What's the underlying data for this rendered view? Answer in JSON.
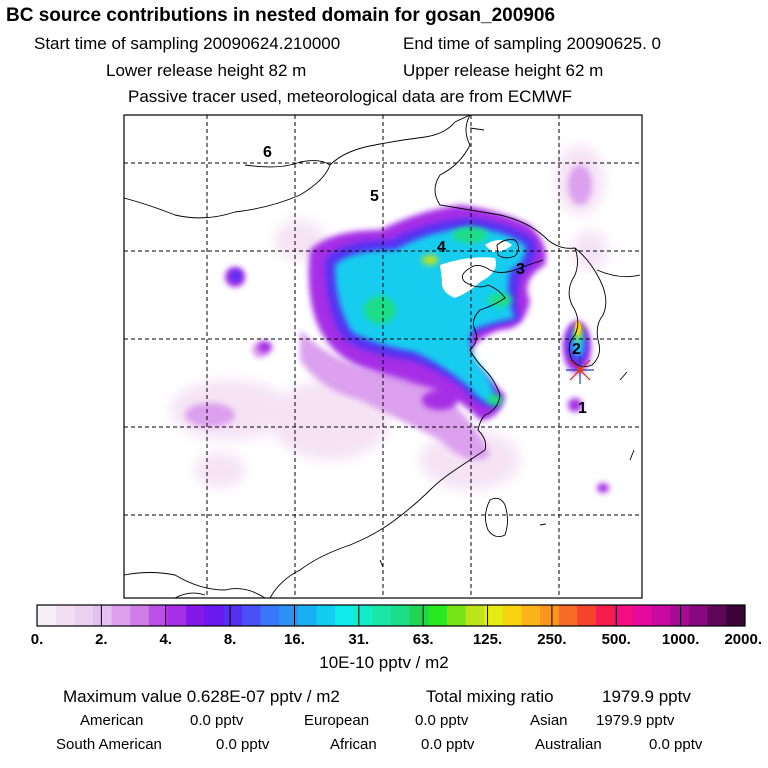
{
  "header": {
    "title": "BC  source contributions in nested domain for gosan_200906",
    "start_label": "Start time of sampling 20090624.210000",
    "end_label": "End time of sampling 20090625.     0",
    "lower_label": "Lower release height   82 m",
    "upper_label": "Upper release height   62 m",
    "tracer_note": "Passive tracer used, meteorological data are from ECMWF"
  },
  "map": {
    "region_labels": [
      "1",
      "2",
      "3",
      "4",
      "5",
      "6"
    ],
    "receptor_marker": "receptor-star-icon"
  },
  "colorbar": {
    "tick_labels": [
      "0.",
      "2.",
      "4.",
      "8.",
      "16.",
      "31.",
      "63.",
      "125.",
      "250.",
      "500.",
      "1000.",
      "2000."
    ],
    "unit": "10E-10 pptv / m2",
    "colors": [
      "#f8eef8",
      "#f2dff2",
      "#ecd0f2",
      "#e4c2f0",
      "#dca0ee",
      "#cf7ee8",
      "#bb50e6",
      "#a62ee6",
      "#8418e8",
      "#6a1aee",
      "#5630f2",
      "#4a50f6",
      "#3a76f8",
      "#2c92f6",
      "#1aaef2",
      "#12cdf0",
      "#10ecec",
      "#14ecc8",
      "#1ce6a6",
      "#1cde86",
      "#20d454",
      "#28e820",
      "#78e418",
      "#bce41a",
      "#e4ec14",
      "#fad214",
      "#fab41a",
      "#f8961e",
      "#f66c26",
      "#f6442c",
      "#f41c4c",
      "#f40e82",
      "#e40a9c",
      "#c80aa0",
      "#a80a98",
      "#88087e",
      "#600658",
      "#3a0436"
    ]
  },
  "stats": {
    "max_label": "Maximum value  0.628E-07 pptv / m2",
    "total_label": "Total mixing ratio",
    "total_value": "1979.9 pptv",
    "regions_row1": [
      {
        "name": "American",
        "value": "0.0 pptv"
      },
      {
        "name": "European",
        "value": "0.0 pptv"
      },
      {
        "name": "Asian",
        "value": "1979.9 pptv"
      }
    ],
    "regions_row2": [
      {
        "name": "South American",
        "value": "0.0 pptv"
      },
      {
        "name": "African",
        "value": "0.0 pptv"
      },
      {
        "name": "Australian",
        "value": "0.0 pptv"
      }
    ]
  }
}
